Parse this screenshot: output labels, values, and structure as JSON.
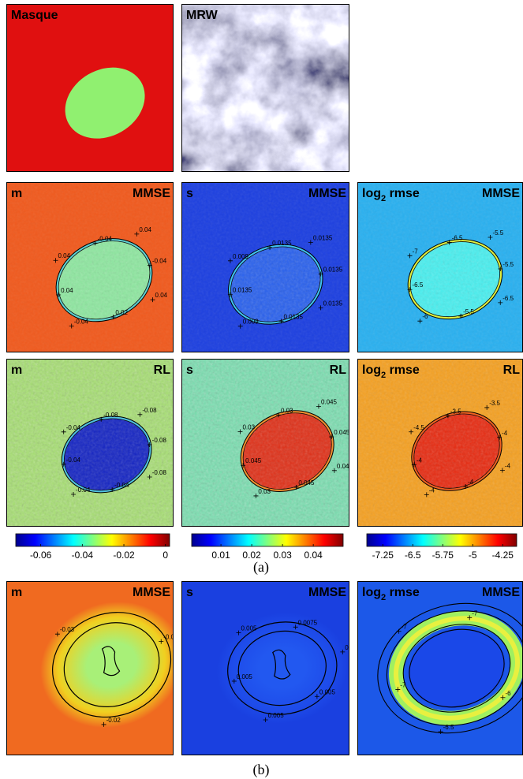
{
  "figure": {
    "panels": [
      {
        "title_left": "Masque"
      },
      {
        "title_left": "MRW"
      },
      {
        "title_left": "m",
        "title_right": "MMSE",
        "contour_labels": [
          "0.04",
          "-0.04",
          "0.04",
          "-0.04",
          "0.04",
          "0.02",
          "-0.04",
          "0.04"
        ]
      },
      {
        "title_left": "s",
        "title_right": "MMSE",
        "contour_labels": [
          "0.009",
          "0.0135",
          "0.0135",
          "0.0135",
          "0.0135",
          "0.0135",
          "0.009",
          "0.0135"
        ]
      },
      {
        "title_left": "log",
        "title_sub": "2",
        "title_rest": " rmse",
        "title_right": "MMSE",
        "contour_labels": [
          "-7",
          "-6.5",
          "-5.5",
          "-5.5",
          "-6.5",
          "-5.5",
          "-6",
          "-6.5"
        ]
      },
      {
        "title_left": "m",
        "title_right": "RL",
        "contour_labels": [
          "-0.04",
          "-0.08",
          "-0.08",
          "-0.08",
          "-0.08",
          "-0.04",
          "-0.04",
          "-0.04"
        ]
      },
      {
        "title_left": "s",
        "title_right": "RL",
        "contour_labels": [
          "0.03",
          "0.03",
          "0.045",
          "0.045",
          "0.045",
          "0.045",
          "0.03",
          "0.045"
        ]
      },
      {
        "title_left": "log",
        "title_sub": "2",
        "title_rest": " rmse",
        "title_right": "RL",
        "contour_labels": [
          "-4.5",
          "-3.5",
          "-3.5",
          "-4",
          "-4",
          "-4",
          "-4",
          "-4"
        ]
      },
      {
        "title_left": "m",
        "title_right": "MMSE",
        "contour_labels": [
          "-0.03",
          "-0.04",
          "-0.02"
        ]
      },
      {
        "title_left": "s",
        "title_right": "MMSE",
        "contour_labels": [
          "0.005",
          "0.0075",
          "0.0075",
          "0.005",
          "0.005",
          "0.005"
        ]
      },
      {
        "title_left": "log",
        "title_sub": "2",
        "title_rest": " rmse",
        "title_right": "MMSE",
        "contour_labels": [
          "-7",
          "-7",
          "-6",
          "-6",
          "-6.5",
          "-7"
        ]
      }
    ],
    "colorbars": [
      {
        "lim": [
          -0.072,
          0.002
        ],
        "ticks": [
          -0.06,
          -0.04,
          -0.02,
          0
        ]
      },
      {
        "lim": [
          0.0005,
          0.0497
        ],
        "ticks": [
          0.01,
          0.02,
          0.03,
          0.04
        ]
      },
      {
        "lim": [
          -7.65,
          -3.9
        ],
        "ticks": [
          -7.25,
          -6.5,
          -5.75,
          -5,
          -4.25
        ]
      }
    ],
    "captions": [
      "(a)",
      "(b)"
    ]
  }
}
